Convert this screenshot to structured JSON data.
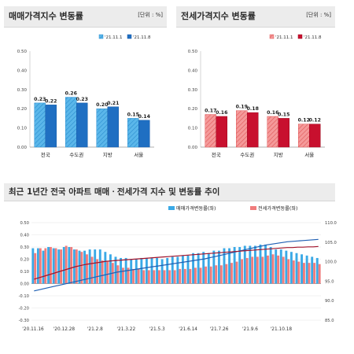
{
  "top_left": {
    "title": "매매가격지수 변동률",
    "unit": "[단위 : %]",
    "legend": [
      "'21.11.1",
      "'21.11.8"
    ]
  },
  "top_right": {
    "title": "전세가격지수 변동률",
    "unit": "[단위 : %]",
    "legend": [
      "'21.11.1",
      "'21.11.8"
    ]
  },
  "bottom": {
    "title": "최근 1년간 전국 아파트 매매ㆍ전세가격 지수 및 변동률 추이",
    "legend": [
      "매매가격변동률(좌)",
      "전세가격변동률(좌)"
    ]
  },
  "colors": {
    "sale_prev": "#3aa9e6",
    "sale_curr": "#1f6fc2",
    "rent_prev": "#f07c7c",
    "rent_curr": "#c8102e",
    "sale_index_line": "#1f5fb3",
    "rent_index_line": "#a0122a"
  },
  "chart_data": [
    {
      "type": "bar",
      "categories": [
        "전국",
        "수도권",
        "지방",
        "서울"
      ],
      "series": [
        {
          "name": "'21.11.1",
          "values": [
            0.23,
            0.26,
            0.2,
            0.15
          ]
        },
        {
          "name": "'21.11.8",
          "values": [
            0.22,
            0.23,
            0.21,
            0.14
          ]
        }
      ],
      "ylim": [
        0,
        0.5
      ],
      "yticks": [
        "0.00",
        "0.10",
        "0.20",
        "0.30",
        "0.40",
        "0.50"
      ],
      "value_labels": [
        [
          "0.23",
          "0.26",
          "0.20",
          "0.15"
        ],
        [
          "0.22",
          "0.23",
          "0.21",
          "0.14"
        ]
      ]
    },
    {
      "type": "bar",
      "categories": [
        "전국",
        "수도권",
        "지방",
        "서울"
      ],
      "series": [
        {
          "name": "'21.11.1",
          "values": [
            0.17,
            0.19,
            0.16,
            0.12
          ]
        },
        {
          "name": "'21.11.8",
          "values": [
            0.16,
            0.18,
            0.15,
            0.12
          ]
        }
      ],
      "ylim": [
        0,
        0.5
      ],
      "yticks": [
        "0.00",
        "0.10",
        "0.20",
        "0.30",
        "0.40",
        "0.50"
      ],
      "value_labels": [
        [
          "0.17",
          "0.19",
          "0.16",
          "0.12"
        ],
        [
          "0.16",
          "0.18",
          "0.15",
          "0.12"
        ]
      ]
    },
    {
      "type": "bar",
      "x_tick_labels": [
        "'20.11.16",
        "'20.12.28",
        "'21.2.8",
        "'21.3.22",
        "'21.5.3",
        "'21.6.14",
        "'21.7.26",
        "'21.9.6",
        "'21.10.18"
      ],
      "y_left_ticks": [
        "0.50",
        "0.40",
        "0.30",
        "0.20",
        "0.10",
        "0.00",
        "-0.10",
        "-0.20",
        "-0.30"
      ],
      "y_right_ticks": [
        "110.0",
        "105.0",
        "100.0",
        "95.0",
        "90.0",
        "85.0"
      ],
      "ylim_left": [
        -0.3,
        0.5
      ],
      "ylim_right": [
        85,
        110
      ],
      "series": [
        {
          "name": "매매가격변동률(좌)",
          "values": [
            0.29,
            0.29,
            0.27,
            0.3,
            0.29,
            0.28,
            0.3,
            0.3,
            0.28,
            0.27,
            0.27,
            0.28,
            0.28,
            0.28,
            0.26,
            0.24,
            0.22,
            0.21,
            0.21,
            0.2,
            0.2,
            0.21,
            0.21,
            0.21,
            0.21,
            0.2,
            0.21,
            0.22,
            0.22,
            0.23,
            0.23,
            0.25,
            0.25,
            0.26,
            0.25,
            0.27,
            0.27,
            0.29,
            0.29,
            0.3,
            0.3,
            0.31,
            0.31,
            0.31,
            0.32,
            0.32,
            0.3,
            0.28,
            0.28,
            0.27,
            0.26,
            0.25,
            0.24,
            0.23,
            0.22,
            0.21
          ]
        },
        {
          "name": "전세가격변동률(좌)",
          "values": [
            0.25,
            0.29,
            0.29,
            0.3,
            0.29,
            0.28,
            0.31,
            0.3,
            0.28,
            0.26,
            0.24,
            0.22,
            0.2,
            0.19,
            0.18,
            0.17,
            0.15,
            0.13,
            0.13,
            0.12,
            0.12,
            0.11,
            0.11,
            0.11,
            0.11,
            0.11,
            0.11,
            0.11,
            0.12,
            0.12,
            0.12,
            0.13,
            0.13,
            0.14,
            0.14,
            0.15,
            0.15,
            0.16,
            0.17,
            0.18,
            0.2,
            0.21,
            0.22,
            0.22,
            0.22,
            0.23,
            0.24,
            0.23,
            0.22,
            0.2,
            0.19,
            0.18,
            0.17,
            0.17,
            0.17,
            0.16
          ]
        },
        {
          "name": "매매가격지수",
          "values": [
            92.5,
            92.8,
            93.1,
            93.4,
            93.7,
            94.0,
            94.3,
            94.6,
            94.9,
            95.2,
            95.5,
            95.8,
            96.1,
            96.4,
            96.7,
            97.0,
            97.3,
            97.5,
            97.7,
            97.9,
            98.1,
            98.3,
            98.5,
            98.7,
            98.9,
            99.1,
            99.3,
            99.5,
            99.7,
            99.9,
            100.1,
            100.3,
            100.5,
            100.7,
            101.0,
            101.3,
            101.6,
            101.9,
            102.2,
            102.5,
            102.8,
            103.1,
            103.4,
            103.7,
            104.0,
            104.3,
            104.5,
            104.7,
            104.9,
            105.1,
            105.2,
            105.3,
            105.4,
            105.5,
            105.6,
            105.7
          ]
        },
        {
          "name": "전세가격지수",
          "values": [
            95.5,
            95.9,
            96.3,
            96.7,
            97.1,
            97.5,
            97.9,
            98.3,
            98.7,
            99.0,
            99.3,
            99.5,
            99.7,
            99.9,
            100.1,
            100.2,
            100.3,
            100.4,
            100.5,
            100.6,
            100.7,
            100.8,
            100.9,
            101.0,
            101.1,
            101.2,
            101.3,
            101.4,
            101.5,
            101.6,
            101.7,
            101.8,
            101.9,
            102.0,
            102.1,
            102.2,
            102.3,
            102.4,
            102.5,
            102.6,
            102.7,
            102.8,
            102.9,
            103.0,
            103.1,
            103.2,
            103.3,
            103.4,
            103.5,
            103.6,
            103.6,
            103.7,
            103.7,
            103.8,
            103.8,
            103.9
          ]
        }
      ]
    }
  ]
}
